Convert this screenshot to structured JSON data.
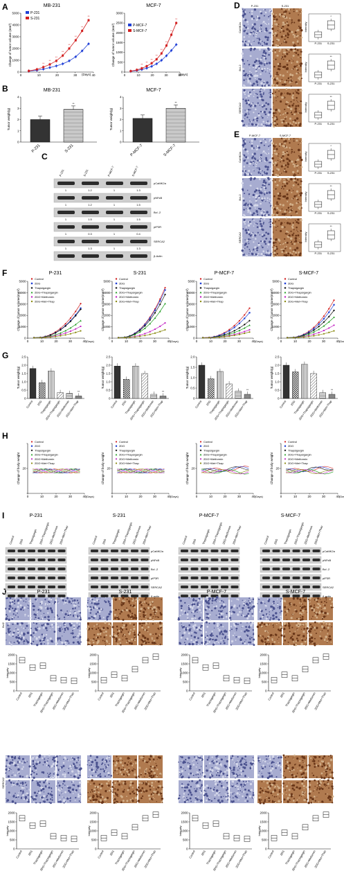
{
  "panels": {
    "A": {
      "letter": "A",
      "charts": [
        {
          "title": "MB-231",
          "ylabel": "Change of tumor volume (mm³)",
          "xunit": "(Days)",
          "ticks_x": [
            "0",
            "10",
            "20",
            "30",
            "40"
          ],
          "ticks_y": [
            "0",
            "1000",
            "2000",
            "3000",
            "4000",
            "5000"
          ],
          "legend": [
            "P-231",
            "S-231"
          ]
        },
        {
          "title": "MCF-7",
          "ylabel": "Change of tumor volume (mm³)",
          "xunit": "(Days)",
          "ticks_x": [
            "0",
            "10",
            "20",
            "30",
            "40"
          ],
          "ticks_y": [
            "0",
            "500",
            "1000",
            "1500",
            "2000",
            "2500",
            "3000"
          ],
          "legend": [
            "P-MCF-7",
            "S-MCF-7"
          ]
        }
      ]
    },
    "B": {
      "letter": "B",
      "charts": [
        {
          "title": "MB-231",
          "ylabel": "Tumor weight(g)",
          "ticks_y": [
            "0",
            "1",
            "2",
            "3",
            "4"
          ],
          "categories": [
            "P-231",
            "S-231"
          ],
          "sig": "**"
        },
        {
          "title": "MCF-7",
          "ylabel": "Tumor weight(g)",
          "ticks_y": [
            "0",
            "1",
            "2",
            "3",
            "4"
          ],
          "categories": [
            "P-MCF-7",
            "S-MCF-7"
          ],
          "sig": "**"
        }
      ]
    },
    "C": {
      "letter": "C",
      "lanes": [
        "P-231",
        "S-231",
        "P-MCF-7",
        "S-MCF-7"
      ],
      "rows": [
        {
          "label": "pCaMK2a",
          "values": [
            "1",
            "1.2",
            "1",
            "1.3"
          ]
        },
        {
          "label": "pNFκB",
          "values": [
            "1",
            "1.2",
            "1",
            "1.5"
          ]
        },
        {
          "label": "Bcl -2",
          "values": [
            "1",
            "1.5",
            "1",
            "1.5"
          ]
        },
        {
          "label": "pIP3R",
          "values": [
            "1",
            "0.3",
            "1",
            "0.4"
          ]
        },
        {
          "label": "SERCA2",
          "values": [
            "1",
            "1.3",
            "1",
            "1.3"
          ]
        },
        {
          "label": "β-Actin",
          "values": []
        }
      ]
    },
    "D": {
      "letter": "D",
      "cols": [
        "P-231",
        "S-231"
      ],
      "rows": [
        "CaMK2a",
        "Bcl-2",
        "SERCA2"
      ],
      "ylabel": "Intensity",
      "box_x": [
        "P-231",
        "S-231"
      ],
      "sig": [
        "*",
        "**",
        "**"
      ]
    },
    "E": {
      "letter": "E",
      "cols": [
        "P-MCF-7",
        "S-MCF-7"
      ],
      "rows": [
        "CaMK2a",
        "Bcl-2",
        "SERCA2"
      ],
      "ylabel": "Intensity",
      "box_x": [
        "P-231",
        "S-231"
      ],
      "sig": [
        "*",
        "**",
        "**"
      ]
    },
    "F": {
      "letter": "F",
      "titles": [
        "P-231",
        "S-231",
        "P-MCF-7",
        "S-MCF-7"
      ],
      "ylabel": "Change of tumor volume(mm³)",
      "xunit": "(Days)",
      "legend": [
        "Control",
        "2DG",
        "Thapsigargin",
        "2DG+Thapsigargin",
        "2DG+Metformin",
        "2DG+Met+Thap"
      ]
    },
    "G": {
      "letter": "G",
      "ylabel": "Tumor weight(g)",
      "categories": [
        "Control",
        "2DG",
        "Thapsigargin",
        "2DG+Thapsigargin",
        "2DG+Metformin",
        "2DG+Met+Thap"
      ],
      "sig": "**"
    },
    "H": {
      "letter": "H",
      "ylabel": "Change of body weight",
      "xunit": "(Days)",
      "legend": [
        "Control",
        "2DG",
        "Thapsigargin",
        "2DG+Thapsigargin",
        "2DG+Metformin",
        "2DG+Met+Thap"
      ]
    },
    "I": {
      "letter": "I",
      "titles": [
        "P-231",
        "S-231",
        "P-MCF-7",
        "S-MCF-7"
      ],
      "lanes": [
        "Control",
        "2DG",
        "Thapsigargin",
        "2DG+Thapsigargin",
        "2DG+Metformin",
        "2DG+Met+Thap"
      ],
      "rows": [
        "pCaMK2a",
        "pNFκB",
        "Bcl -2",
        "pIP3R",
        "SERCA2",
        "β-actin"
      ]
    },
    "J": {
      "letter": "J",
      "titles": [
        "P-231",
        "S-231",
        "P-MCF-7",
        "S-MCF-7"
      ],
      "rows": [
        "Bcl2",
        "SERCA2"
      ],
      "ylabel": "Intensity",
      "categories": [
        "Control",
        "2DG",
        "Thapsigargin",
        "2DG+Thapsigargin",
        "2DG+Metformin",
        "2DG+Met+Thap"
      ]
    }
  },
  "colors": {
    "blue": "#1f3fd6",
    "red": "#d21f1f",
    "black": "#111111",
    "green": "#1a9a1a",
    "magenta": "#c21fc2",
    "olive": "#8a8a10",
    "ihc_blue": "#7f86b8",
    "ihc_brown": "#8a4f2a"
  },
  "chart_data": [
    {
      "type": "line",
      "panel": "A-MB-231",
      "x": [
        5,
        10,
        14,
        18,
        22,
        26,
        30,
        34,
        38,
        42
      ],
      "series": [
        {
          "name": "P-231",
          "values": [
            80,
            150,
            250,
            380,
            520,
            700,
            950,
            1300,
            1800,
            2400
          ]
        },
        {
          "name": "S-231",
          "values": [
            100,
            230,
            420,
            650,
            950,
            1400,
            2000,
            2700,
            3500,
            4400
          ]
        }
      ]
    },
    {
      "type": "line",
      "panel": "A-MCF-7",
      "x": [
        5,
        10,
        14,
        18,
        22,
        26,
        30,
        34,
        38,
        42
      ],
      "series": [
        {
          "name": "P-MCF-7",
          "values": [
            40,
            80,
            130,
            200,
            290,
            420,
            600,
            830,
            1100,
            1400
          ]
        },
        {
          "name": "S-MCF-7",
          "values": [
            50,
            110,
            190,
            300,
            450,
            650,
            950,
            1350,
            1900,
            2500
          ]
        }
      ]
    },
    {
      "type": "bar",
      "panel": "B-MB-231",
      "categories": [
        "P-231",
        "S-231"
      ],
      "values": [
        2.0,
        2.9
      ],
      "ylim": [
        0,
        4
      ]
    },
    {
      "type": "bar",
      "panel": "B-MCF-7",
      "categories": [
        "P-MCF-7",
        "S-MCF-7"
      ],
      "values": [
        2.1,
        3.0
      ],
      "ylim": [
        0,
        4
      ]
    },
    {
      "type": "bar",
      "panel": "G-P-231",
      "categories": [
        "Control",
        "2DG",
        "Thapsigargin",
        "2DG+Thapsigargin",
        "2DG+Metformin",
        "2DG+Met+Thap"
      ],
      "values": [
        1.8,
        0.95,
        1.65,
        0.35,
        0.3,
        0.15
      ],
      "ylim": [
        0,
        2.5
      ]
    },
    {
      "type": "bar",
      "panel": "G-S-231",
      "categories": [
        "Control",
        "2DG",
        "Thapsigargin",
        "2DG+Thapsigargin",
        "2DG+Metformin",
        "2DG+Met+Thap"
      ],
      "values": [
        1.95,
        1.15,
        1.95,
        1.5,
        0.25,
        0.15
      ],
      "ylim": [
        0,
        2.5
      ]
    },
    {
      "type": "bar",
      "panel": "G-P-MCF-7",
      "categories": [
        "Control",
        "2DG",
        "Thapsigargin",
        "2DG+Thapsigargin",
        "2DG+Metformin",
        "2DG+Met+Thap"
      ],
      "values": [
        1.6,
        0.95,
        1.3,
        0.7,
        0.35,
        0.2
      ],
      "ylim": [
        0,
        2
      ]
    },
    {
      "type": "bar",
      "panel": "G-S-MCF-7",
      "categories": [
        "Control",
        "2DG",
        "Thapsigargin",
        "2DG+Thapsigargin",
        "2DG+Metformin",
        "2DG+Met+Thap"
      ],
      "values": [
        2.0,
        1.6,
        2.05,
        1.5,
        0.35,
        0.25
      ],
      "ylim": [
        0,
        2.5
      ]
    }
  ]
}
